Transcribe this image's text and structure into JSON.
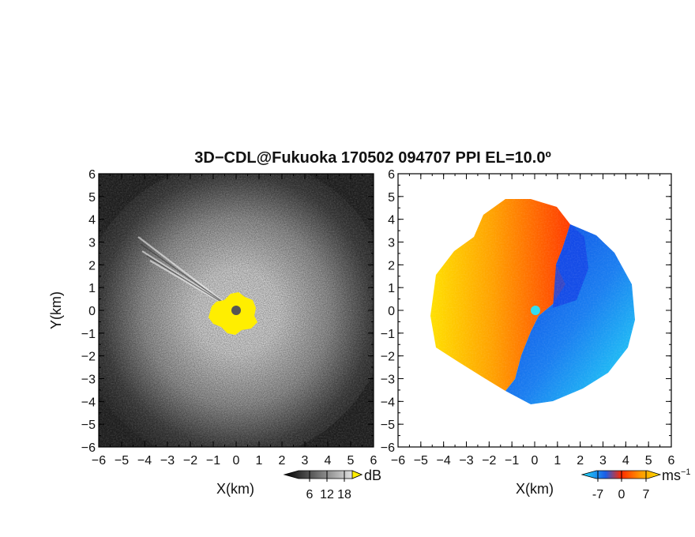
{
  "title": "3D−CDL@Fukuoka 170502 094707 PPI EL=10.0º",
  "chart_data": [
    {
      "type": "heatmap",
      "xlabel": "X(km)",
      "ylabel": "Y(km)",
      "xlim": [
        -6,
        6
      ],
      "ylim": [
        -6,
        6
      ],
      "x_ticks": [
        -6,
        -5,
        -4,
        -3,
        -2,
        -1,
        0,
        1,
        2,
        3,
        4,
        5,
        6
      ],
      "y_ticks": [
        -6,
        -5,
        -4,
        -3,
        -2,
        -1,
        0,
        1,
        2,
        3,
        4,
        5,
        6
      ],
      "colorbar": {
        "label": "dB",
        "ticks": [
          6,
          12,
          18
        ]
      },
      "colors": {
        "low": "#1a1a1a",
        "high": "#ffffff",
        "saturated": "#ffee00",
        "center": "#555555"
      }
    },
    {
      "type": "heatmap",
      "xlabel": "X(km)",
      "ylabel": "",
      "xlim": [
        -6,
        6
      ],
      "ylim": [
        -6,
        6
      ],
      "x_ticks": [
        -6,
        -5,
        -4,
        -3,
        -2,
        -1,
        0,
        1,
        2,
        3,
        4,
        5,
        6
      ],
      "y_ticks": [
        -6,
        -5,
        -4,
        -3,
        -2,
        -1,
        0,
        1,
        2,
        3,
        4,
        5,
        6
      ],
      "colorbar": {
        "label": "ms",
        "label_sup": "−1",
        "ticks": [
          -7,
          0,
          7
        ]
      },
      "colors": {
        "toward": "#0a4ee6",
        "away_far": "#ffe000",
        "away_near": "#ff2a00",
        "center": "#33ddee"
      }
    }
  ]
}
